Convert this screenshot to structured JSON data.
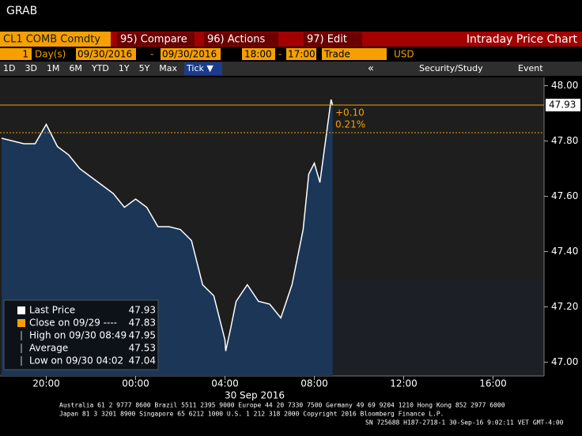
{
  "header": {
    "title": "GRAB"
  },
  "toolbar": {
    "ticker": "CL1 COMB Comdty",
    "buttons": [
      "95) Compare",
      "96) Actions",
      "97) Edit"
    ],
    "panel_title": "Intraday Price Chart",
    "period": "1",
    "period_unit": "Day(s)",
    "start_date": "09/30/2016",
    "dash": "-",
    "end_date": "09/30/2016",
    "start_time": "18:00",
    "end_time": "17:00",
    "field": "Trade",
    "currency": "USD",
    "ranges": [
      "1D",
      "3D",
      "1M",
      "6M",
      "YTD",
      "1Y",
      "5Y",
      "Max",
      "Tick ▼"
    ],
    "nav": "«",
    "study": "Security/Study",
    "event": "Event"
  },
  "chart_data": {
    "type": "area-line",
    "color": "#ffffff",
    "fill": "#1b3657",
    "x": [
      "18:00",
      "18:30",
      "19:00",
      "19:30",
      "20:00",
      "20:30",
      "21:00",
      "21:30",
      "22:00",
      "22:30",
      "23:00",
      "23:30",
      "00:00",
      "00:30",
      "01:00",
      "01:30",
      "02:00",
      "02:30",
      "03:00",
      "03:30",
      "04:00",
      "04:02",
      "04:15",
      "04:30",
      "05:00",
      "05:30",
      "06:00",
      "06:30",
      "07:00",
      "07:30",
      "07:45",
      "08:00",
      "08:15",
      "08:30",
      "08:45",
      "08:49"
    ],
    "values": [
      47.81,
      47.8,
      47.79,
      47.79,
      47.86,
      47.78,
      47.75,
      47.7,
      47.67,
      47.64,
      47.61,
      47.56,
      47.59,
      47.56,
      47.49,
      47.49,
      47.48,
      47.44,
      47.28,
      47.24,
      47.08,
      47.04,
      47.12,
      47.22,
      47.28,
      47.22,
      47.21,
      47.16,
      47.28,
      47.48,
      47.68,
      47.72,
      47.65,
      47.8,
      47.95,
      47.93
    ],
    "xlim": [
      "18:00",
      "18:00"
    ],
    "xticks": [
      "20:00",
      "00:00",
      "04:00",
      "08:00",
      "12:00",
      "16:00"
    ],
    "xlabel": "30 Sep 2016",
    "ylim": [
      46.95,
      48.03
    ],
    "yticks": [
      {
        "value": 47,
        "label": "47.00"
      },
      {
        "value": 47.2,
        "label": "47.20"
      },
      {
        "value": 47.4,
        "label": "47.40"
      },
      {
        "value": 47.6,
        "label": "47.60"
      },
      {
        "value": 47.8,
        "label": "47.80"
      },
      {
        "value": 48,
        "label": "48.00"
      }
    ],
    "reference_lines": [
      {
        "value": 47.83,
        "color": "#f5a000",
        "dashed": true
      },
      {
        "value": 47.93,
        "color": "#f5a000",
        "dashed": false
      }
    ],
    "annotations": [
      "+0.10",
      "0.21%"
    ],
    "legend": [
      {
        "label": "Last Price",
        "value": 47.93
      },
      {
        "label": "Close on 09/29 ----",
        "value": 47.83
      },
      {
        "label": "High on 09/30 08:49",
        "value": 47.95
      },
      {
        "label": "Average",
        "value": 47.53
      },
      {
        "label": "Low on 09/30 04:02",
        "value": 47.04
      }
    ]
  },
  "footer": {
    "lines": [
      "Australia 61 2 9777 8600 Brazil 5511 2395 9000 Europe 44 20 7330 7500 Germany 49 69 9204 1210 Hong Kong 852 2977 6000",
      "Japan 81 3 3201 8900        Singapore 65 6212 1000        U.S. 1 212 318 2000           Copyright 2016 Bloomberg Finance L.P.",
      "SN 725688 H187-2718-1 30-Sep-16  9:02:11 VET  GMT-4:00"
    ]
  }
}
